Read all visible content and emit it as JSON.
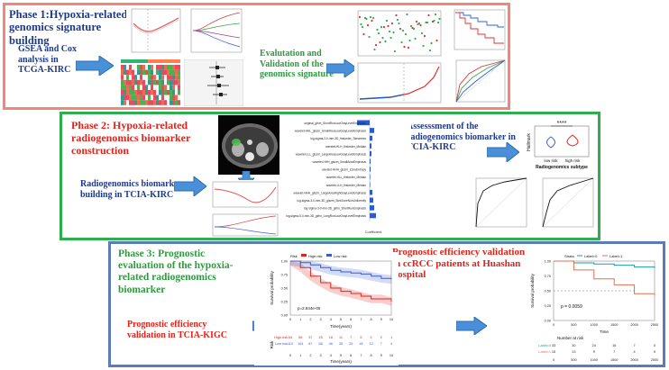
{
  "colors": {
    "phase1_border": "#f0877a",
    "phase2_border": "#2fae4f",
    "phase3_border": "#5d7bb8",
    "dark_blue_text": "#1f3a8a",
    "green_text": "#2e9b3e",
    "red_text": "#e0241b",
    "arrow_fill": "#4a90d9",
    "high_risk": "#e0241b",
    "low_risk": "#3a5bd0"
  },
  "phase1": {
    "title": "Phase 1:Hypoxia-related genomics signature building",
    "gsea_text": "GSEA and Cox analysis in TCGA-KIRC",
    "validation_text": "Evalutation and Validation of the genomics signature"
  },
  "phase2": {
    "title": "Phase 2: Hypoxia-related radiogenomics biomarker construction",
    "building_text": "Radiogenomics biomarker building in TCIA-KIRC",
    "assessment_text": "Assesssment of the radiogenomics biomarker in TCIA-KIRC",
    "coef_xlabel": "Coefficient",
    "feature_labels": [
      "original_glrlm_ShortRunLowGrayLevelEmphasis",
      "wavelet-HHL_glszm_SmallAreaLowGrayLevelEmphasis",
      "log-sigma-2-0-mm-3D_firstorder_Skewness",
      "wavelet-HLH_firstorder_Median",
      "wavelet-LLL_glszm_LargeAreaLowGrayLevelEmphasis",
      "wavelet-HHH_glszm_SmallAreaEmphasis",
      "wavelet-HHH_glszm_ZoneEntropy",
      "wavelet-HLL_firstorder_Median",
      "wavelet-LLH_firstorder_Median",
      "wavelet-HHH_glszm_LargeAreaHighGrayLevelEmphasis",
      "log-sigma-3-0-mm-3D_glszm_SizeZoneNonUniformity",
      "log-sigma-3-0-mm-3D_glrlm_ShortRunEmphasis",
      "log-sigma-5-0-mm-3D_glrlm_LongRunLowGrayLevelEmphasis"
    ],
    "violin": {
      "significance": "****",
      "ylabel": "Hallmark",
      "xlabel": "Radiogenomics subtype",
      "groups": [
        "low risk",
        "high risk"
      ]
    }
  },
  "phase3": {
    "title": "Phase 3: Prognostic evaluation of the hypoxia-related radiogenomics biomarker",
    "tcia_text": "Prognostic efficiency validation in TCIA-KIGC",
    "huashan_text": "Prognostic efficiency validation in ccRCC patients at Huashan hospital",
    "km_left": {
      "legend_title": "Risk",
      "legend_items": [
        "High risk",
        "Low risk"
      ],
      "ylabel": "Survival probability",
      "xlabel": "Time(years)",
      "pvalue": "p=2.844e-05",
      "y_ticks": [
        "1.00",
        "0.75",
        "0.50",
        "0.25",
        "0.00"
      ],
      "x_ticks": [
        "0",
        "1",
        "2",
        "3",
        "4",
        "5",
        "6",
        "7",
        "8",
        "9",
        "10"
      ],
      "risk_table_title": "Risk",
      "risk_rows": [
        {
          "label": "High risk",
          "values": [
            "64",
            "56",
            "37",
            "25",
            "18",
            "11",
            "7",
            "5",
            "2",
            "2",
            "1"
          ]
        },
        {
          "label": "Low risk",
          "values": [
            "110",
            "104",
            "87",
            "68",
            "46",
            "35",
            "25",
            "18",
            "12",
            "7",
            "4"
          ]
        }
      ],
      "chart_data": {
        "type": "line",
        "xlabel": "Time(years)",
        "ylabel": "Survival probability",
        "ylim": [
          0,
          1
        ],
        "x": [
          0,
          1,
          2,
          3,
          4,
          5,
          6,
          7,
          8,
          9,
          10
        ],
        "series": [
          {
            "name": "High risk",
            "values": [
              1.0,
              0.88,
              0.72,
              0.6,
              0.5,
              0.44,
              0.4,
              0.35,
              0.3,
              0.3,
              0.25
            ]
          },
          {
            "name": "Low risk",
            "values": [
              1.0,
              0.97,
              0.93,
              0.88,
              0.83,
              0.8,
              0.78,
              0.76,
              0.72,
              0.68,
              0.66
            ]
          }
        ]
      }
    },
    "km_right": {
      "legend_title": "Strata",
      "legend_items": [
        "Label=0",
        "Label=1"
      ],
      "ylabel": "Survival probability",
      "xlabel": "Time",
      "pvalue": "p = 0.0059",
      "y_ticks": [
        "1.00",
        "0.75",
        "0.50",
        "0.25",
        "0.00"
      ],
      "x_ticks": [
        "0",
        "500",
        "1000",
        "1500",
        "2000",
        "2500"
      ],
      "at_risk_title": "Number at risk",
      "risk_rows": [
        {
          "label": "Label=0",
          "values": [
            "33",
            "30",
            "24",
            "16",
            "7",
            "0"
          ]
        },
        {
          "label": "Label=1",
          "values": [
            "15",
            "13",
            "9",
            "7",
            "4",
            "0"
          ]
        }
      ],
      "chart_data": {
        "type": "line",
        "xlabel": "Time",
        "ylabel": "Survival probability",
        "ylim": [
          0,
          1
        ],
        "x": [
          0,
          500,
          1000,
          1500,
          2000,
          2500
        ],
        "series": [
          {
            "name": "Label=0",
            "values": [
              1.0,
              0.97,
              0.95,
              0.93,
              0.9,
              0.88
            ]
          },
          {
            "name": "Label=1",
            "values": [
              1.0,
              0.85,
              0.7,
              0.6,
              0.45,
              0.42
            ]
          }
        ]
      }
    }
  }
}
